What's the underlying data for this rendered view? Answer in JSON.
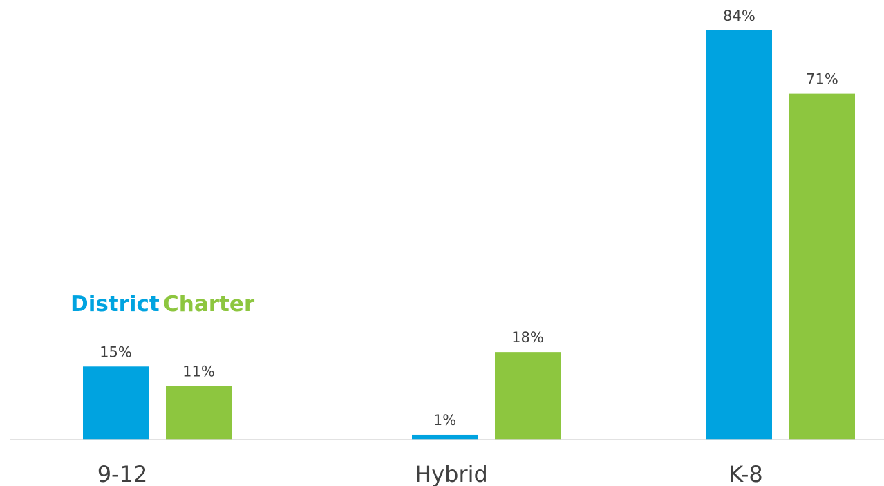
{
  "chart_data": {
    "type": "bar",
    "categories": [
      "9-12",
      "Hybrid",
      "K-8"
    ],
    "series": [
      {
        "name": "District",
        "values": [
          15,
          1,
          84
        ],
        "labels": [
          "15%",
          "1%",
          "84%"
        ],
        "color": "#00a3e0"
      },
      {
        "name": "Charter",
        "values": [
          11,
          18,
          71
        ],
        "labels": [
          "11%",
          "18%",
          "71%"
        ],
        "color": "#8dc63f"
      }
    ],
    "title": "",
    "xlabel": "",
    "ylabel": "",
    "ylim": [
      0,
      84
    ],
    "legend_position": "left",
    "grid": false,
    "axis_color": "#d9d9d9"
  }
}
